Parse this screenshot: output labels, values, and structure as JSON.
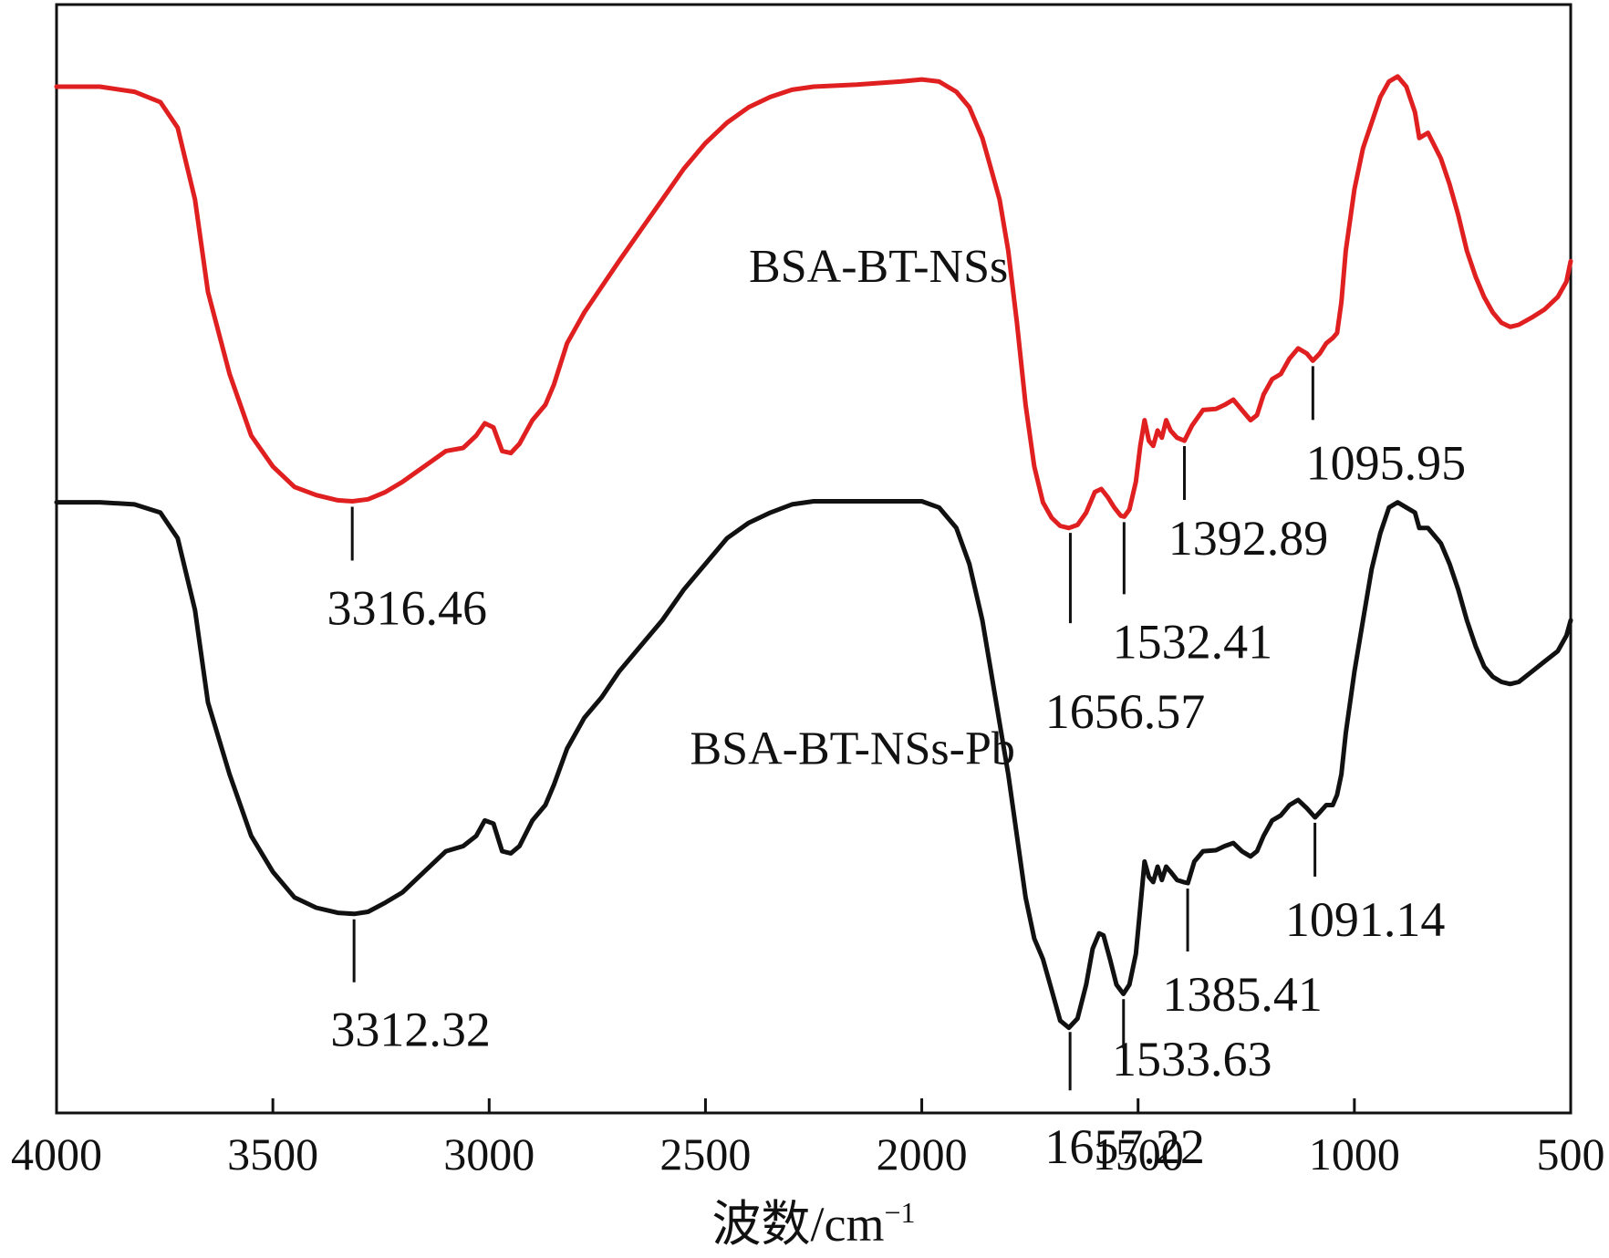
{
  "chart_data": {
    "type": "line",
    "title": "",
    "xlabel": "波数/cm",
    "xlabel_superscript": "−1",
    "ylabel": "",
    "xlim": [
      4000,
      500
    ],
    "x_reversed": true,
    "xticks": [
      4000,
      3500,
      3000,
      2500,
      2000,
      1500,
      1000,
      500
    ],
    "y_units": "relative transmittance (offset, unlabeled axis)",
    "ylim": [
      0,
      100
    ],
    "grid": false,
    "legend": "none (series labeled inline)",
    "series": [
      {
        "name": "BSA-BT-NSs",
        "color": "#e02020",
        "points": [
          [
            4000,
            96
          ],
          [
            3900,
            96
          ],
          [
            3820,
            95.5
          ],
          [
            3760,
            94.5
          ],
          [
            3720,
            92
          ],
          [
            3680,
            85
          ],
          [
            3650,
            76
          ],
          [
            3600,
            68
          ],
          [
            3550,
            62
          ],
          [
            3500,
            59
          ],
          [
            3450,
            57
          ],
          [
            3400,
            56.2
          ],
          [
            3350,
            55.7
          ],
          [
            3316,
            55.6
          ],
          [
            3280,
            55.8
          ],
          [
            3240,
            56.5
          ],
          [
            3200,
            57.5
          ],
          [
            3150,
            59
          ],
          [
            3100,
            60.5
          ],
          [
            3060,
            60.8
          ],
          [
            3030,
            62
          ],
          [
            3010,
            63.2
          ],
          [
            2990,
            62.8
          ],
          [
            2970,
            60.5
          ],
          [
            2950,
            60.3
          ],
          [
            2930,
            61.2
          ],
          [
            2900,
            63.5
          ],
          [
            2870,
            65
          ],
          [
            2850,
            67
          ],
          [
            2820,
            71
          ],
          [
            2780,
            74
          ],
          [
            2740,
            76.5
          ],
          [
            2700,
            79
          ],
          [
            2650,
            82
          ],
          [
            2600,
            85
          ],
          [
            2550,
            88
          ],
          [
            2500,
            90.5
          ],
          [
            2450,
            92.5
          ],
          [
            2400,
            94
          ],
          [
            2350,
            95
          ],
          [
            2300,
            95.7
          ],
          [
            2250,
            96
          ],
          [
            2150,
            96.2
          ],
          [
            2050,
            96.5
          ],
          [
            2000,
            96.7
          ],
          [
            1960,
            96.5
          ],
          [
            1920,
            95.5
          ],
          [
            1890,
            94
          ],
          [
            1860,
            91
          ],
          [
            1840,
            88
          ],
          [
            1820,
            85
          ],
          [
            1800,
            80
          ],
          [
            1780,
            73
          ],
          [
            1760,
            65
          ],
          [
            1740,
            59
          ],
          [
            1720,
            55.5
          ],
          [
            1700,
            54
          ],
          [
            1680,
            53.2
          ],
          [
            1660,
            53
          ],
          [
            1640,
            53.3
          ],
          [
            1620,
            54.5
          ],
          [
            1600,
            56.5
          ],
          [
            1585,
            56.8
          ],
          [
            1570,
            56
          ],
          [
            1555,
            55
          ],
          [
            1540,
            54.2
          ],
          [
            1532,
            54.1
          ],
          [
            1520,
            54.8
          ],
          [
            1505,
            57.5
          ],
          [
            1495,
            61
          ],
          [
            1485,
            63.5
          ],
          [
            1475,
            61.5
          ],
          [
            1465,
            61
          ],
          [
            1455,
            62.5
          ],
          [
            1445,
            61.8
          ],
          [
            1435,
            63.5
          ],
          [
            1425,
            62.5
          ],
          [
            1410,
            61.8
          ],
          [
            1393,
            61.5
          ],
          [
            1375,
            63
          ],
          [
            1350,
            64.5
          ],
          [
            1320,
            64.6
          ],
          [
            1300,
            65
          ],
          [
            1280,
            65.5
          ],
          [
            1260,
            64.5
          ],
          [
            1240,
            63.5
          ],
          [
            1225,
            64
          ],
          [
            1210,
            66
          ],
          [
            1190,
            67.5
          ],
          [
            1170,
            68
          ],
          [
            1150,
            69.5
          ],
          [
            1130,
            70.5
          ],
          [
            1110,
            70
          ],
          [
            1096,
            69.3
          ],
          [
            1080,
            70
          ],
          [
            1065,
            71
          ],
          [
            1050,
            71.5
          ],
          [
            1040,
            72
          ],
          [
            1030,
            75
          ],
          [
            1020,
            80
          ],
          [
            1000,
            86
          ],
          [
            980,
            90
          ],
          [
            960,
            92.5
          ],
          [
            940,
            95
          ],
          [
            920,
            96.5
          ],
          [
            900,
            97
          ],
          [
            880,
            96
          ],
          [
            860,
            93.5
          ],
          [
            850,
            91
          ],
          [
            830,
            91.5
          ],
          [
            800,
            89
          ],
          [
            780,
            86.5
          ],
          [
            760,
            83.5
          ],
          [
            740,
            80
          ],
          [
            720,
            77.5
          ],
          [
            700,
            75.5
          ],
          [
            680,
            74
          ],
          [
            660,
            73
          ],
          [
            640,
            72.6
          ],
          [
            620,
            72.8
          ],
          [
            590,
            73.5
          ],
          [
            560,
            74.3
          ],
          [
            530,
            75.5
          ],
          [
            510,
            77
          ],
          [
            500,
            79
          ]
        ]
      },
      {
        "name": "BSA-BT-NSs-Pb",
        "color": "#111111",
        "points": [
          [
            4000,
            55.5
          ],
          [
            3900,
            55.5
          ],
          [
            3820,
            55.3
          ],
          [
            3760,
            54.5
          ],
          [
            3720,
            52
          ],
          [
            3680,
            45
          ],
          [
            3650,
            36
          ],
          [
            3600,
            29
          ],
          [
            3550,
            23
          ],
          [
            3500,
            19.5
          ],
          [
            3450,
            17
          ],
          [
            3400,
            16
          ],
          [
            3350,
            15.5
          ],
          [
            3312,
            15.4
          ],
          [
            3280,
            15.6
          ],
          [
            3240,
            16.5
          ],
          [
            3200,
            17.5
          ],
          [
            3150,
            19.5
          ],
          [
            3100,
            21.5
          ],
          [
            3060,
            22
          ],
          [
            3030,
            23
          ],
          [
            3010,
            24.5
          ],
          [
            2990,
            24.2
          ],
          [
            2970,
            21.5
          ],
          [
            2950,
            21.3
          ],
          [
            2930,
            22
          ],
          [
            2900,
            24.5
          ],
          [
            2870,
            26
          ],
          [
            2850,
            28
          ],
          [
            2820,
            31.5
          ],
          [
            2780,
            34.5
          ],
          [
            2740,
            36.5
          ],
          [
            2700,
            39
          ],
          [
            2650,
            41.5
          ],
          [
            2600,
            44
          ],
          [
            2550,
            47
          ],
          [
            2500,
            49.5
          ],
          [
            2450,
            52
          ],
          [
            2400,
            53.5
          ],
          [
            2350,
            54.5
          ],
          [
            2300,
            55.3
          ],
          [
            2250,
            55.6
          ],
          [
            2150,
            55.6
          ],
          [
            2050,
            55.6
          ],
          [
            2000,
            55.6
          ],
          [
            1960,
            55
          ],
          [
            1920,
            53
          ],
          [
            1890,
            49.5
          ],
          [
            1860,
            44
          ],
          [
            1840,
            39
          ],
          [
            1820,
            34
          ],
          [
            1800,
            29
          ],
          [
            1780,
            23
          ],
          [
            1760,
            17
          ],
          [
            1740,
            13
          ],
          [
            1720,
            11
          ],
          [
            1700,
            8
          ],
          [
            1680,
            5
          ],
          [
            1660,
            4.3
          ],
          [
            1640,
            5.2
          ],
          [
            1620,
            8.5
          ],
          [
            1605,
            12
          ],
          [
            1590,
            13.5
          ],
          [
            1580,
            13.3
          ],
          [
            1565,
            11
          ],
          [
            1550,
            8.5
          ],
          [
            1534,
            7.6
          ],
          [
            1520,
            8.5
          ],
          [
            1505,
            11.5
          ],
          [
            1495,
            16
          ],
          [
            1485,
            20.5
          ],
          [
            1475,
            19
          ],
          [
            1465,
            18.5
          ],
          [
            1455,
            20
          ],
          [
            1445,
            18.7
          ],
          [
            1435,
            20
          ],
          [
            1425,
            19.5
          ],
          [
            1410,
            18.7
          ],
          [
            1395,
            18.5
          ],
          [
            1385,
            18.4
          ],
          [
            1370,
            20.5
          ],
          [
            1350,
            21.5
          ],
          [
            1320,
            21.6
          ],
          [
            1300,
            22
          ],
          [
            1280,
            22.3
          ],
          [
            1260,
            21.5
          ],
          [
            1240,
            21
          ],
          [
            1225,
            21.5
          ],
          [
            1210,
            23
          ],
          [
            1190,
            24.5
          ],
          [
            1170,
            25
          ],
          [
            1150,
            26
          ],
          [
            1130,
            26.5
          ],
          [
            1110,
            25.7
          ],
          [
            1091,
            24.8
          ],
          [
            1080,
            25.3
          ],
          [
            1065,
            26
          ],
          [
            1050,
            26
          ],
          [
            1040,
            27
          ],
          [
            1030,
            29
          ],
          [
            1020,
            33
          ],
          [
            1000,
            39
          ],
          [
            980,
            44
          ],
          [
            960,
            49
          ],
          [
            940,
            52.5
          ],
          [
            920,
            55
          ],
          [
            900,
            55.5
          ],
          [
            880,
            55
          ],
          [
            860,
            54.5
          ],
          [
            850,
            53
          ],
          [
            830,
            53
          ],
          [
            800,
            51.5
          ],
          [
            780,
            49.5
          ],
          [
            760,
            47
          ],
          [
            740,
            44
          ],
          [
            720,
            41.5
          ],
          [
            700,
            39.5
          ],
          [
            680,
            38.5
          ],
          [
            660,
            38
          ],
          [
            640,
            37.8
          ],
          [
            620,
            38
          ],
          [
            590,
            39
          ],
          [
            560,
            40
          ],
          [
            530,
            41
          ],
          [
            510,
            42.5
          ],
          [
            500,
            44
          ]
        ]
      }
    ],
    "series_labels": [
      {
        "text": "BSA-BT-NSs",
        "series": 0,
        "x": 2100,
        "y": 77
      },
      {
        "text": "BSA-BT-NSs-Pb",
        "series": 1,
        "x": 2160,
        "y": 30
      }
    ],
    "annotations": [
      {
        "series": 0,
        "x": 3316.46,
        "label": "3316.46"
      },
      {
        "series": 0,
        "x": 1656.57,
        "label": "1656.57"
      },
      {
        "series": 0,
        "x": 1532.41,
        "label": "1532.41"
      },
      {
        "series": 0,
        "x": 1392.89,
        "label": "1392.89"
      },
      {
        "series": 0,
        "x": 1095.95,
        "label": "1095.95"
      },
      {
        "series": 1,
        "x": 3312.32,
        "label": "3312.32"
      },
      {
        "series": 1,
        "x": 1657.22,
        "label": "1657.22"
      },
      {
        "series": 1,
        "x": 1533.63,
        "label": "1533.63"
      },
      {
        "series": 1,
        "x": 1385.41,
        "label": "1385.41"
      },
      {
        "series": 1,
        "x": 1091.14,
        "label": "1091.14"
      }
    ]
  }
}
